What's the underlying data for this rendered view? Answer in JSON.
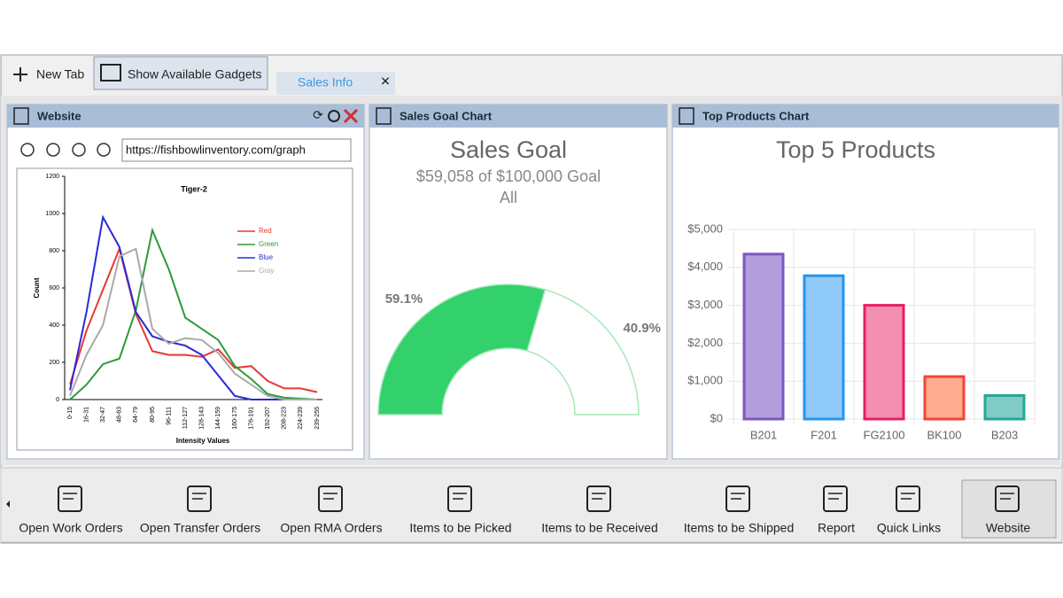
{
  "toolbar": {
    "new_tab": "New Tab",
    "show_gadgets": "Show Available Gadgets",
    "tab": "Sales Info"
  },
  "panels": [
    {
      "title": "Website",
      "url": "https://fishbowlinventory.com/graph"
    },
    {
      "title": "Sales Goal Chart"
    },
    {
      "title": "Top Products Chart"
    }
  ],
  "chart_data": [
    {
      "type": "line",
      "title": "Tiger-2",
      "x_label": "Intensity Values",
      "y_label": "Count",
      "categories": [
        "0-15",
        "16-31",
        "32-47",
        "48-63",
        "64-79",
        "80-95",
        "96-111",
        "112-127",
        "128-143",
        "144-159",
        "160-175",
        "176-191",
        "192-207",
        "208-223",
        "224-239",
        "239-255"
      ],
      "series": [
        {
          "name": "Red",
          "color": "#e53935",
          "values": [
            80,
            370,
            590,
            810,
            460,
            260,
            240,
            240,
            230,
            270,
            170,
            180,
            100,
            60,
            60,
            40
          ]
        },
        {
          "name": "Green",
          "color": "#2e9a3a",
          "values": [
            0,
            80,
            190,
            220,
            480,
            910,
            700,
            440,
            380,
            320,
            180,
            110,
            30,
            10,
            5,
            0
          ]
        },
        {
          "name": "Blue",
          "color": "#2a2ad8",
          "values": [
            50,
            470,
            980,
            820,
            470,
            340,
            310,
            290,
            240,
            130,
            20,
            0,
            0,
            0,
            0,
            0
          ]
        },
        {
          "name": "Gray",
          "color": "#aaaaaa",
          "values": [
            20,
            240,
            400,
            770,
            810,
            380,
            300,
            330,
            320,
            250,
            140,
            80,
            20,
            0,
            0,
            0
          ]
        }
      ],
      "ylim": [
        0,
        1200
      ],
      "yticks": [
        0,
        200,
        400,
        600,
        800,
        1000,
        1200
      ],
      "legend": "upper right"
    },
    {
      "type": "gauge",
      "title": "Sales Goal",
      "subtitle": "$59,058 of $100,000 Goal",
      "filter": "All",
      "values": [
        59.1,
        40.9
      ],
      "value_labels": [
        "59.1%",
        "40.9%"
      ],
      "colors": [
        "#33d16b",
        "#ffffff"
      ],
      "border_color": "#a5e8b9"
    },
    {
      "type": "bar",
      "title": "Top 5 Products",
      "categories": [
        "B201",
        "F201",
        "FG2100",
        "BK100",
        "B203"
      ],
      "values": [
        4350,
        3780,
        3000,
        1120,
        620
      ],
      "colors": [
        "#b39ddb",
        "#90caf9",
        "#f48fb1",
        "#ffab91",
        "#80cbc4"
      ],
      "border_colors": [
        "#7e57c2",
        "#2196f3",
        "#e91e63",
        "#f44336",
        "#26a69a"
      ],
      "ylim": [
        0,
        5000
      ],
      "yticks": [
        {
          "value": 0,
          "label": "$0"
        },
        {
          "value": 1000,
          "label": "$1,000"
        },
        {
          "value": 2000,
          "label": "$2,000"
        },
        {
          "value": 3000,
          "label": "$3,000"
        },
        {
          "value": 4000,
          "label": "$4,000"
        },
        {
          "value": 5000,
          "label": "$5,000"
        }
      ],
      "grid": true
    }
  ],
  "bottom_bar": {
    "items": [
      "Open Work Orders",
      "Open Transfer Orders",
      "Open RMA Orders",
      "Items to be Picked",
      "Items to be Received",
      "Items to be Shipped",
      "Report",
      "Quick Links",
      "Website"
    ]
  }
}
